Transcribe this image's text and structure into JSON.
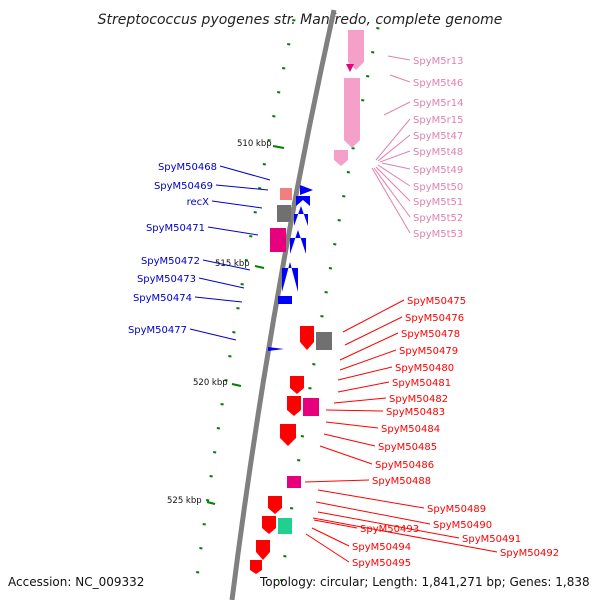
{
  "title": "Streptococcus pyogenes str. Manfredo, complete genome",
  "footer": {
    "accession": "Accession: NC_009332",
    "summary": "Topology: circular; Length: 1,841,271 bp; Genes: 1,838"
  },
  "scale_labels": [
    "510 kbp",
    "515 kbp",
    "520 kbp",
    "525 kbp"
  ],
  "colors": {
    "backbone": "#808080",
    "rna_genes": "#f4a0c8",
    "rna_labels": "#e080b0",
    "plus_genes": "#0000ff",
    "minus_genes": "#ff0000",
    "tick": "#008000",
    "gene_accent_magenta": "#e6007e",
    "gene_accent_grey": "#707070",
    "gene_accent_green": "#20d090",
    "gene_accent_salmon": "#f08080"
  },
  "labels": {
    "rna": [
      "SpyM5r13",
      "SpyM5t46",
      "SpyM5r14",
      "SpyM5r15",
      "SpyM5t47",
      "SpyM5t48",
      "SpyM5t49",
      "SpyM5t50",
      "SpyM5t51",
      "SpyM5t52",
      "SpyM5t53"
    ],
    "plus": [
      "SpyM50468",
      "SpyM50469",
      "recX",
      "SpyM50471",
      "SpyM50472",
      "SpyM50473",
      "SpyM50474",
      "SpyM50477"
    ],
    "minus": [
      "SpyM50475",
      "SpyM50476",
      "SpyM50478",
      "SpyM50479",
      "SpyM50480",
      "SpyM50481",
      "SpyM50482",
      "SpyM50483",
      "SpyM50484",
      "SpyM50485",
      "SpyM50486",
      "SpyM50488",
      "SpyM50489",
      "SpyM50490",
      "SpyM50491",
      "SpyM50492",
      "SpyM50493",
      "SpyM50494",
      "SpyM50495"
    ]
  }
}
